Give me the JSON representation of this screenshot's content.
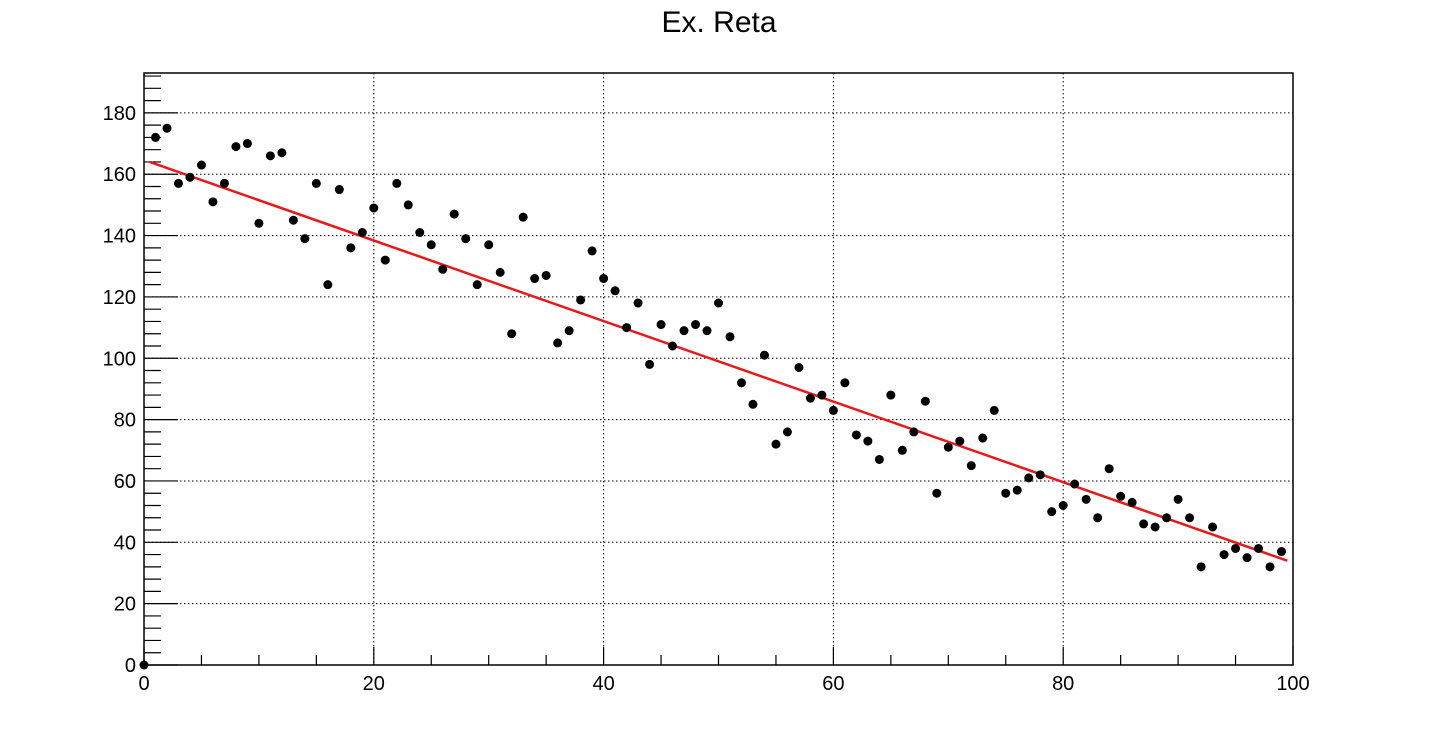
{
  "chart_data": {
    "type": "scatter",
    "title": "Ex. Reta",
    "xlabel": "",
    "ylabel": "",
    "xlim": [
      0,
      100
    ],
    "ylim": [
      0,
      193
    ],
    "x_ticks": [
      0,
      20,
      40,
      60,
      80,
      100
    ],
    "y_ticks": [
      0,
      20,
      40,
      60,
      80,
      100,
      120,
      140,
      160,
      180
    ],
    "grid": true,
    "series": [
      {
        "marker_color": "#000000",
        "points": [
          [
            0,
            0
          ],
          [
            1,
            172
          ],
          [
            2,
            175
          ],
          [
            3,
            157
          ],
          [
            4,
            159
          ],
          [
            5,
            163
          ],
          [
            6,
            151
          ],
          [
            7,
            157
          ],
          [
            8,
            169
          ],
          [
            9,
            170
          ],
          [
            10,
            144
          ],
          [
            11,
            166
          ],
          [
            12,
            167
          ],
          [
            13,
            145
          ],
          [
            14,
            139
          ],
          [
            15,
            157
          ],
          [
            16,
            124
          ],
          [
            17,
            155
          ],
          [
            18,
            136
          ],
          [
            19,
            141
          ],
          [
            20,
            149
          ],
          [
            21,
            132
          ],
          [
            22,
            157
          ],
          [
            23,
            150
          ],
          [
            24,
            141
          ],
          [
            25,
            137
          ],
          [
            26,
            129
          ],
          [
            27,
            147
          ],
          [
            28,
            139
          ],
          [
            29,
            124
          ],
          [
            30,
            137
          ],
          [
            31,
            128
          ],
          [
            32,
            108
          ],
          [
            33,
            146
          ],
          [
            34,
            126
          ],
          [
            35,
            127
          ],
          [
            36,
            105
          ],
          [
            37,
            109
          ],
          [
            38,
            119
          ],
          [
            39,
            135
          ],
          [
            40,
            126
          ],
          [
            41,
            122
          ],
          [
            42,
            110
          ],
          [
            43,
            118
          ],
          [
            44,
            98
          ],
          [
            45,
            111
          ],
          [
            46,
            104
          ],
          [
            47,
            109
          ],
          [
            48,
            111
          ],
          [
            49,
            109
          ],
          [
            50,
            118
          ],
          [
            51,
            107
          ],
          [
            52,
            92
          ],
          [
            53,
            85
          ],
          [
            54,
            101
          ],
          [
            55,
            72
          ],
          [
            56,
            76
          ],
          [
            57,
            97
          ],
          [
            58,
            87
          ],
          [
            59,
            88
          ],
          [
            60,
            83
          ],
          [
            61,
            92
          ],
          [
            62,
            75
          ],
          [
            63,
            73
          ],
          [
            64,
            67
          ],
          [
            65,
            88
          ],
          [
            66,
            70
          ],
          [
            67,
            76
          ],
          [
            68,
            86
          ],
          [
            69,
            56
          ],
          [
            70,
            71
          ],
          [
            71,
            73
          ],
          [
            72,
            65
          ],
          [
            73,
            74
          ],
          [
            74,
            83
          ],
          [
            75,
            56
          ],
          [
            76,
            57
          ],
          [
            77,
            61
          ],
          [
            78,
            62
          ],
          [
            79,
            50
          ],
          [
            80,
            52
          ],
          [
            81,
            59
          ],
          [
            82,
            54
          ],
          [
            83,
            48
          ],
          [
            84,
            64
          ],
          [
            85,
            55
          ],
          [
            86,
            53
          ],
          [
            87,
            46
          ],
          [
            88,
            45
          ],
          [
            89,
            48
          ],
          [
            90,
            54
          ],
          [
            91,
            48
          ],
          [
            92,
            32
          ],
          [
            93,
            45
          ],
          [
            94,
            36
          ],
          [
            95,
            38
          ],
          [
            96,
            35
          ],
          [
            97,
            38
          ],
          [
            98,
            32
          ],
          [
            99,
            37
          ]
        ]
      }
    ],
    "fit_line": {
      "color": "#e8191b",
      "x": [
        0.5,
        99.5
      ],
      "y": [
        164,
        34
      ]
    }
  }
}
